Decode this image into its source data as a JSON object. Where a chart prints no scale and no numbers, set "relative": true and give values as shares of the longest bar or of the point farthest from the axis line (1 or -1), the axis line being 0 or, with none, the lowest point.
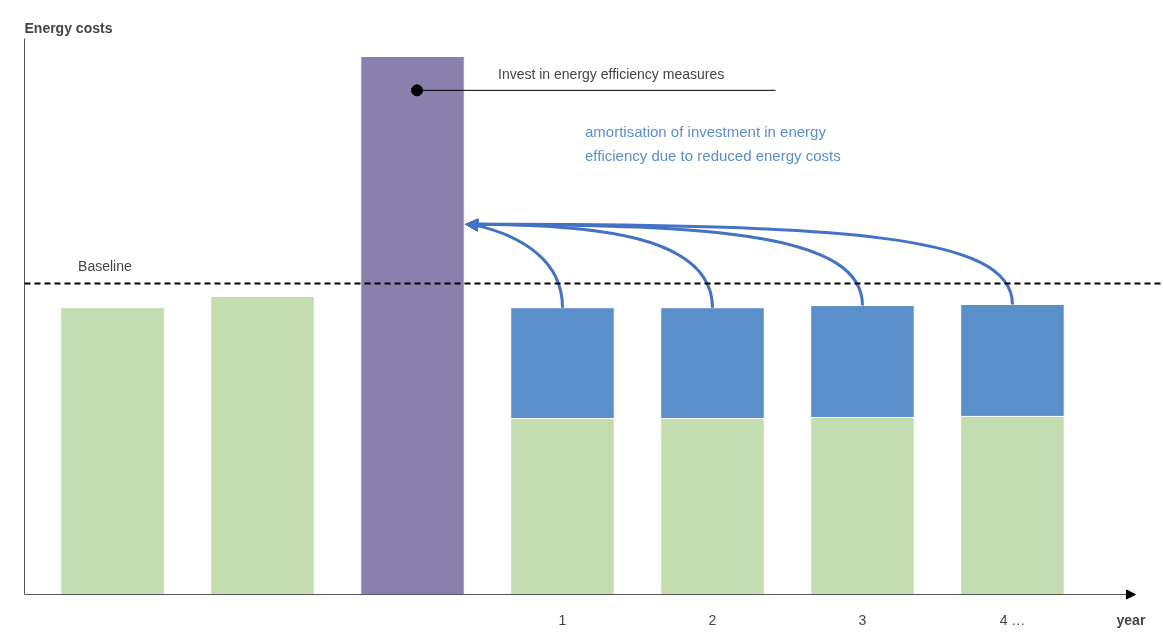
{
  "chart_data": {
    "type": "bar",
    "stacked": true,
    "relative": true,
    "ylabel": "Energy costs",
    "xlabel": "year",
    "categories": [
      null,
      null,
      null,
      "1",
      "2",
      "3",
      "4 …"
    ],
    "series": [
      {
        "color": "#c3ddb0",
        "values": [
          0.533,
          0.554,
          null,
          0.327,
          0.327,
          0.329,
          0.331
        ]
      },
      {
        "color": "#8a80ad",
        "values": [
          null,
          null,
          1.0,
          null,
          null,
          null,
          null
        ]
      },
      {
        "color": "#5a8fc9",
        "values": [
          null,
          null,
          null,
          0.206,
          0.206,
          0.208,
          0.208
        ]
      }
    ],
    "ref_lines": [
      {
        "axis": "y",
        "value": 0.578,
        "label": "Baseline",
        "color": "#000000",
        "line_style": "dashed"
      }
    ],
    "annotations": [
      "Invest in energy efficiency measures",
      "amortisation of investment in energy efficiency due to reduced energy costs"
    ]
  }
}
